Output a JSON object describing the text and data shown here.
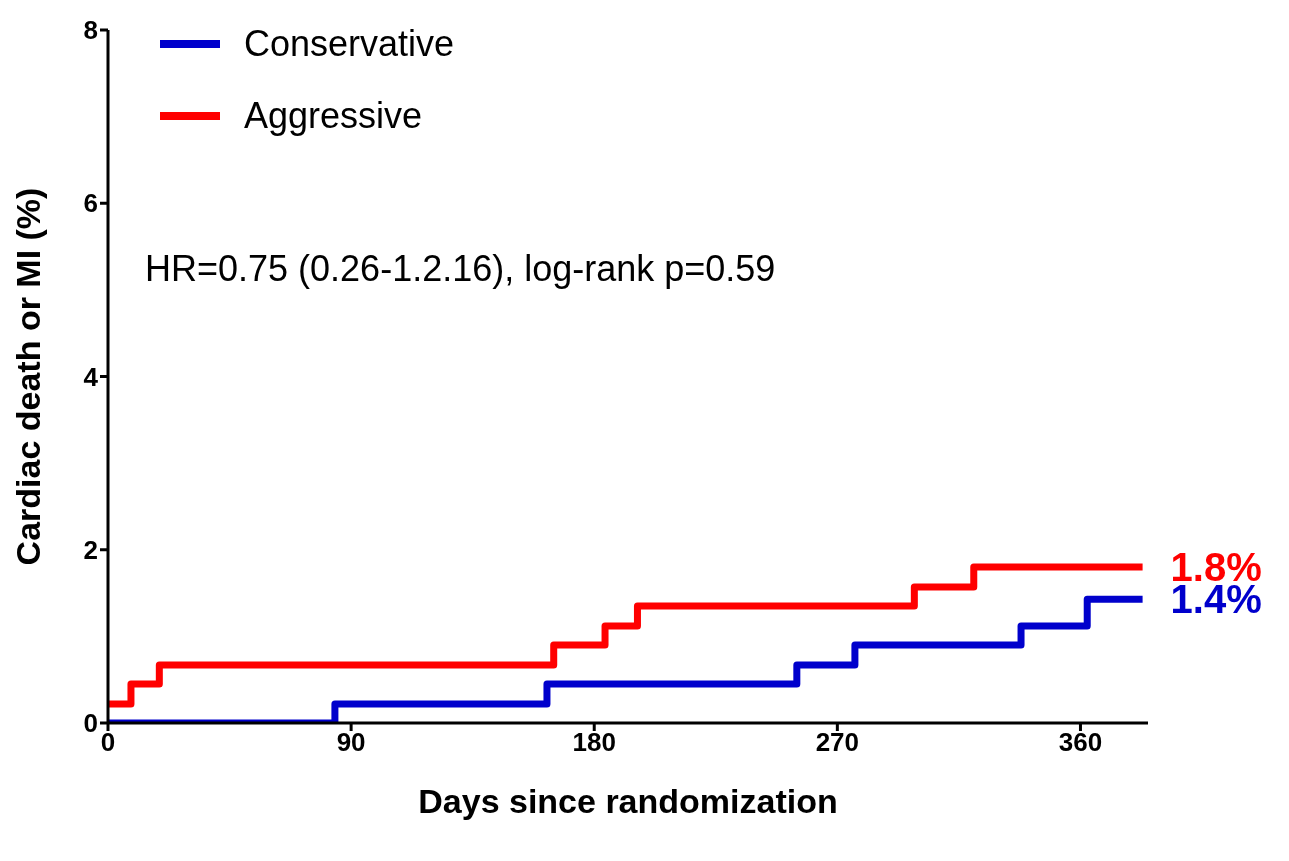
{
  "chart_data": {
    "type": "step",
    "xlabel": "Days since randomization",
    "ylabel": "Cardiac death or MI (%)",
    "annotations": [
      "HR=0.75 (0.26-1.2.16), log-rank p=0.59"
    ],
    "xlim": [
      0,
      385
    ],
    "xticks": [
      0,
      90,
      180,
      270,
      360
    ],
    "ylim": [
      0,
      8
    ],
    "yticks": [
      0,
      2,
      4,
      6,
      8
    ],
    "grid": false,
    "legend": "top left",
    "marker": "none",
    "line_style": "solid",
    "series": [
      {
        "name": "Conservative",
        "color": "#0000cc",
        "x": [
          0,
          84,
          162.5,
          255,
          276.5,
          338,
          362.5,
          383
        ],
        "values": [
          0,
          0.22,
          0.45,
          0.67,
          0.9,
          1.12,
          1.43,
          1.43
        ],
        "value_labels": [
          null,
          null,
          null,
          null,
          null,
          null,
          null,
          "1.4%"
        ]
      },
      {
        "name": "Aggressive",
        "color": "#ff0000",
        "x": [
          0,
          8.5,
          19,
          165,
          184,
          196,
          298.5,
          320.5,
          383
        ],
        "values": [
          0.22,
          0.45,
          0.67,
          0.9,
          1.12,
          1.35,
          1.57,
          1.8,
          1.8
        ],
        "value_labels": [
          null,
          null,
          null,
          null,
          null,
          null,
          null,
          null,
          "1.8%"
        ]
      }
    ]
  }
}
